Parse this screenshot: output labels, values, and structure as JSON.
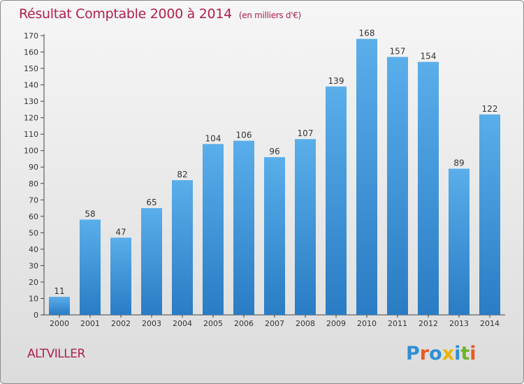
{
  "title": "Résultat Comptable 2000 à 2014",
  "title_unit": "(en milliers d'€)",
  "place": "ALTVILLER",
  "logo_text": "Proxiti",
  "logo_colors": [
    "#2f8fd4",
    "#e85a24",
    "#2f8fd4",
    "#e8b400",
    "#2f8fd4",
    "#6cb52d",
    "#e85a24"
  ],
  "colors": {
    "title": "#b01f4a",
    "bar": "#3d92d6",
    "axis": "#444444"
  },
  "chart_data": {
    "type": "bar",
    "categories": [
      "2000",
      "2001",
      "2002",
      "2003",
      "2004",
      "2005",
      "2006",
      "2007",
      "2008",
      "2009",
      "2010",
      "2011",
      "2012",
      "2013",
      "2014"
    ],
    "values": [
      11,
      58,
      47,
      65,
      82,
      104,
      106,
      96,
      107,
      139,
      168,
      157,
      154,
      89,
      122
    ],
    "ylim": [
      0,
      170
    ],
    "yticks": [
      0,
      10,
      20,
      30,
      40,
      50,
      60,
      70,
      80,
      90,
      100,
      110,
      120,
      130,
      140,
      150,
      160,
      170
    ],
    "grid": false,
    "legend": "none"
  }
}
